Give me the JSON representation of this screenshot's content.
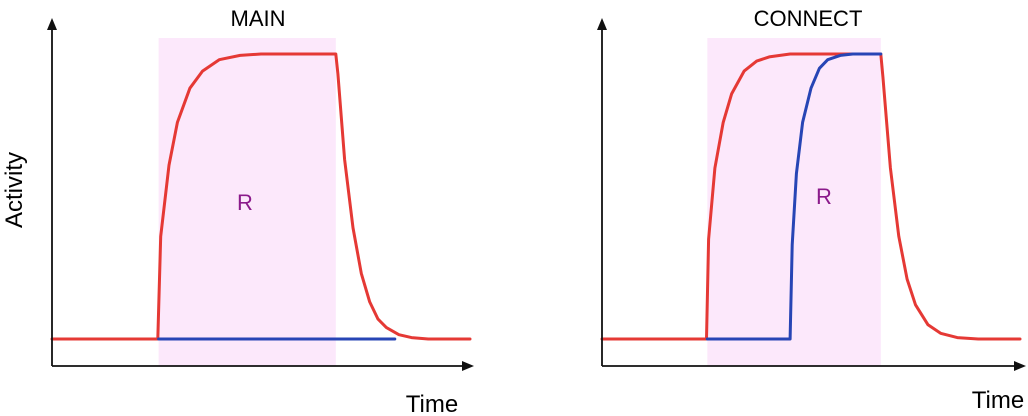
{
  "chart_data": [
    {
      "type": "line",
      "title": "MAIN",
      "xlabel": "Time",
      "ylabel": "Activity",
      "ticks": "none",
      "region": {
        "label": "R",
        "x_start": 0.255,
        "x_end": 0.679,
        "fill_color": "#fce8fb",
        "label_color": "#8b1a8b"
      },
      "baseline": 0.0,
      "series": [
        {
          "color": "#e53935",
          "x": [
            0.0,
            0.253,
            0.26,
            0.28,
            0.3,
            0.33,
            0.36,
            0.4,
            0.45,
            0.5,
            0.55,
            0.6,
            0.65,
            0.679,
            0.684,
            0.7,
            0.72,
            0.74,
            0.76,
            0.78,
            0.8,
            0.83,
            0.86,
            0.9,
            1.0
          ],
          "y": [
            0.0,
            0.0,
            0.36,
            0.61,
            0.76,
            0.88,
            0.94,
            0.98,
            0.995,
            1.0,
            1.0,
            1.0,
            1.0,
            1.0,
            0.93,
            0.63,
            0.39,
            0.23,
            0.13,
            0.07,
            0.04,
            0.015,
            0.005,
            0.0,
            0.0
          ]
        },
        {
          "color": "#2745b5",
          "x": [
            0.255,
            0.82
          ],
          "y": [
            0.0,
            0.0
          ]
        }
      ]
    },
    {
      "type": "line",
      "title": "CONNECT",
      "xlabel": "Time",
      "ylabel": "",
      "ticks": "none",
      "region": {
        "label": "R",
        "x_start": 0.252,
        "x_end": 0.667,
        "fill_color": "#fce8fb",
        "label_color": "#8b1a8b"
      },
      "baseline": 0.0,
      "series": [
        {
          "color": "#e53935",
          "x": [
            0.0,
            0.25,
            0.255,
            0.27,
            0.29,
            0.31,
            0.34,
            0.37,
            0.4,
            0.45,
            0.5,
            0.55,
            0.6,
            0.667,
            0.672,
            0.69,
            0.71,
            0.73,
            0.75,
            0.78,
            0.81,
            0.85,
            0.9,
            1.0
          ],
          "y": [
            0.0,
            0.0,
            0.35,
            0.6,
            0.76,
            0.86,
            0.94,
            0.975,
            0.99,
            1.0,
            1.0,
            1.0,
            1.0,
            1.0,
            0.92,
            0.6,
            0.36,
            0.21,
            0.12,
            0.05,
            0.02,
            0.005,
            0.0,
            0.0
          ]
        },
        {
          "color": "#2745b5",
          "x": [
            0.252,
            0.45,
            0.455,
            0.465,
            0.48,
            0.5,
            0.52,
            0.54,
            0.57,
            0.6,
            0.667
          ],
          "y": [
            0.0,
            0.0,
            0.33,
            0.58,
            0.76,
            0.88,
            0.95,
            0.98,
            0.995,
            1.0,
            1.0
          ]
        }
      ]
    }
  ]
}
